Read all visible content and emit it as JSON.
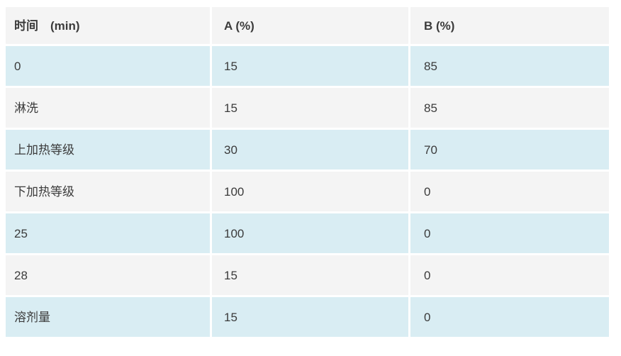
{
  "table": {
    "headers": [
      "时间　(min)",
      "A (%)",
      "B (%)"
    ],
    "rows": [
      [
        "0",
        "15",
        "85"
      ],
      [
        "淋洗",
        "15",
        "85"
      ],
      [
        "上加热等级",
        "30",
        "70"
      ],
      [
        "下加热等级",
        "100",
        "0"
      ],
      [
        "25",
        "100",
        "0"
      ],
      [
        "28",
        "15",
        "0"
      ],
      [
        "溶剂量",
        "15",
        "0"
      ]
    ]
  },
  "colors": {
    "header_bg": "#f4f4f4",
    "row_bg": "#f4f4f4",
    "row_alt_bg": "#d9edf3",
    "text": "#3b3b3b",
    "page_bg": "#ffffff"
  }
}
